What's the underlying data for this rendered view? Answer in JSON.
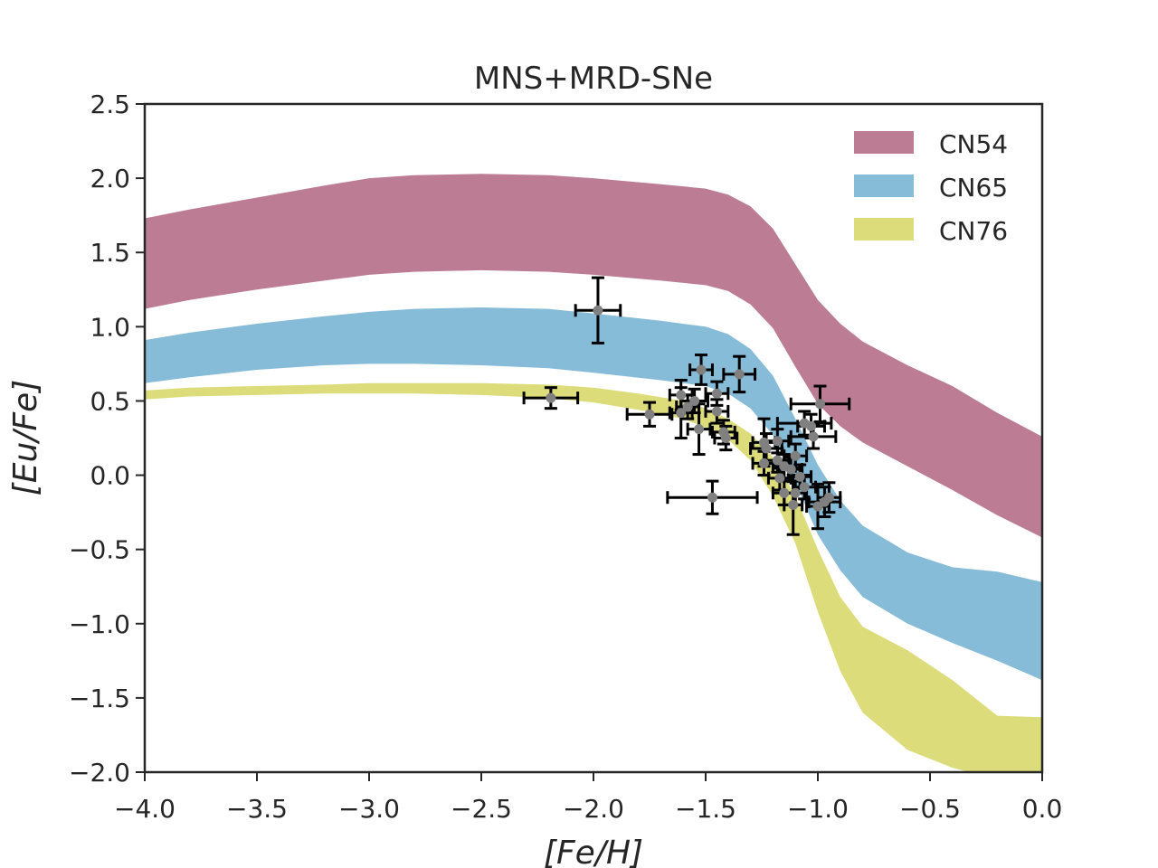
{
  "chart_data": {
    "type": "area",
    "title": "MNS+MRD-SNe",
    "xlabel": "[Fe/H]",
    "ylabel": "[Eu/Fe]",
    "xlim": [
      -4.0,
      0.0
    ],
    "ylim": [
      -2.0,
      2.5
    ],
    "xticks": [
      -4.0,
      -3.5,
      -3.0,
      -2.5,
      -2.0,
      -1.5,
      -1.0,
      -0.5,
      0.0
    ],
    "yticks": [
      -2.0,
      -1.5,
      -1.0,
      -0.5,
      0.0,
      0.5,
      1.0,
      1.5,
      2.0,
      2.5
    ],
    "xtick_labels": [
      "−4.0",
      "−3.5",
      "−3.0",
      "−2.5",
      "−2.0",
      "−1.5",
      "−1.0",
      "−0.5",
      "0.0"
    ],
    "ytick_labels": [
      "−2.0",
      "−1.5",
      "−1.0",
      "−0.5",
      "0.0",
      "0.5",
      "1.0",
      "1.5",
      "2.0",
      "2.5"
    ],
    "legend_position": "top-right",
    "series": [
      {
        "name": "CN54",
        "color": "#bc7d94",
        "upper": [
          [
            -4.0,
            1.73
          ],
          [
            -3.8,
            1.79
          ],
          [
            -3.5,
            1.87
          ],
          [
            -3.2,
            1.95
          ],
          [
            -3.0,
            2.0
          ],
          [
            -2.8,
            2.02
          ],
          [
            -2.5,
            2.03
          ],
          [
            -2.2,
            2.02
          ],
          [
            -2.0,
            2.0
          ],
          [
            -1.7,
            1.96
          ],
          [
            -1.5,
            1.93
          ],
          [
            -1.4,
            1.89
          ],
          [
            -1.3,
            1.81
          ],
          [
            -1.2,
            1.66
          ],
          [
            -1.1,
            1.42
          ],
          [
            -1.0,
            1.18
          ],
          [
            -0.9,
            1.02
          ],
          [
            -0.8,
            0.9
          ],
          [
            -0.6,
            0.74
          ],
          [
            -0.4,
            0.6
          ],
          [
            -0.2,
            0.42
          ],
          [
            0.0,
            0.26
          ]
        ],
        "lower": [
          [
            -4.0,
            1.12
          ],
          [
            -3.8,
            1.18
          ],
          [
            -3.5,
            1.25
          ],
          [
            -3.2,
            1.31
          ],
          [
            -3.0,
            1.35
          ],
          [
            -2.8,
            1.37
          ],
          [
            -2.5,
            1.38
          ],
          [
            -2.2,
            1.37
          ],
          [
            -2.0,
            1.35
          ],
          [
            -1.7,
            1.31
          ],
          [
            -1.5,
            1.28
          ],
          [
            -1.4,
            1.24
          ],
          [
            -1.3,
            1.15
          ],
          [
            -1.2,
            0.99
          ],
          [
            -1.1,
            0.73
          ],
          [
            -1.0,
            0.48
          ],
          [
            -0.9,
            0.33
          ],
          [
            -0.8,
            0.22
          ],
          [
            -0.6,
            0.06
          ],
          [
            -0.4,
            -0.1
          ],
          [
            -0.2,
            -0.27
          ],
          [
            0.0,
            -0.42
          ]
        ]
      },
      {
        "name": "CN65",
        "color": "#87bcd9",
        "upper": [
          [
            -4.0,
            0.91
          ],
          [
            -3.8,
            0.96
          ],
          [
            -3.5,
            1.02
          ],
          [
            -3.2,
            1.07
          ],
          [
            -3.0,
            1.1
          ],
          [
            -2.8,
            1.12
          ],
          [
            -2.5,
            1.13
          ],
          [
            -2.2,
            1.12
          ],
          [
            -2.0,
            1.09
          ],
          [
            -1.7,
            1.04
          ],
          [
            -1.5,
            1.0
          ],
          [
            -1.4,
            0.95
          ],
          [
            -1.3,
            0.85
          ],
          [
            -1.2,
            0.67
          ],
          [
            -1.1,
            0.38
          ],
          [
            -1.0,
            0.07
          ],
          [
            -0.9,
            -0.17
          ],
          [
            -0.8,
            -0.34
          ],
          [
            -0.6,
            -0.52
          ],
          [
            -0.4,
            -0.62
          ],
          [
            -0.2,
            -0.65
          ],
          [
            0.0,
            -0.72
          ]
        ],
        "lower": [
          [
            -4.0,
            0.62
          ],
          [
            -3.8,
            0.66
          ],
          [
            -3.5,
            0.71
          ],
          [
            -3.2,
            0.74
          ],
          [
            -3.0,
            0.75
          ],
          [
            -2.8,
            0.75
          ],
          [
            -2.5,
            0.74
          ],
          [
            -2.2,
            0.72
          ],
          [
            -2.0,
            0.69
          ],
          [
            -1.7,
            0.64
          ],
          [
            -1.5,
            0.6
          ],
          [
            -1.4,
            0.55
          ],
          [
            -1.3,
            0.45
          ],
          [
            -1.2,
            0.27
          ],
          [
            -1.1,
            -0.05
          ],
          [
            -1.0,
            -0.4
          ],
          [
            -0.9,
            -0.64
          ],
          [
            -0.8,
            -0.82
          ],
          [
            -0.6,
            -1.0
          ],
          [
            -0.4,
            -1.13
          ],
          [
            -0.2,
            -1.25
          ],
          [
            0.0,
            -1.38
          ]
        ]
      },
      {
        "name": "CN76",
        "color": "#dcdc7a",
        "upper": [
          [
            -4.0,
            0.57
          ],
          [
            -3.8,
            0.59
          ],
          [
            -3.5,
            0.6
          ],
          [
            -3.2,
            0.61
          ],
          [
            -3.0,
            0.62
          ],
          [
            -2.8,
            0.62
          ],
          [
            -2.5,
            0.62
          ],
          [
            -2.2,
            0.61
          ],
          [
            -2.0,
            0.59
          ],
          [
            -1.8,
            0.55
          ],
          [
            -1.6,
            0.5
          ],
          [
            -1.5,
            0.45
          ],
          [
            -1.4,
            0.38
          ],
          [
            -1.3,
            0.28
          ],
          [
            -1.2,
            0.12
          ],
          [
            -1.1,
            -0.14
          ],
          [
            -1.0,
            -0.5
          ],
          [
            -0.9,
            -0.82
          ],
          [
            -0.8,
            -1.02
          ],
          [
            -0.6,
            -1.18
          ],
          [
            -0.4,
            -1.38
          ],
          [
            -0.2,
            -1.62
          ],
          [
            0.0,
            -1.63
          ]
        ],
        "lower": [
          [
            -4.0,
            0.51
          ],
          [
            -3.8,
            0.53
          ],
          [
            -3.5,
            0.54
          ],
          [
            -3.2,
            0.55
          ],
          [
            -3.0,
            0.55
          ],
          [
            -2.8,
            0.55
          ],
          [
            -2.5,
            0.54
          ],
          [
            -2.2,
            0.52
          ],
          [
            -2.0,
            0.49
          ],
          [
            -1.8,
            0.44
          ],
          [
            -1.6,
            0.38
          ],
          [
            -1.5,
            0.32
          ],
          [
            -1.4,
            0.24
          ],
          [
            -1.3,
            0.1
          ],
          [
            -1.2,
            -0.14
          ],
          [
            -1.1,
            -0.46
          ],
          [
            -1.0,
            -0.92
          ],
          [
            -0.9,
            -1.32
          ],
          [
            -0.8,
            -1.6
          ],
          [
            -0.6,
            -1.85
          ],
          [
            -0.4,
            -1.97
          ],
          [
            -0.2,
            -2.05
          ],
          [
            0.0,
            -2.1
          ]
        ]
      }
    ],
    "observations": [
      {
        "x": -1.98,
        "y": 1.11,
        "xerr": 0.1,
        "yerr": 0.22
      },
      {
        "x": -2.19,
        "y": 0.52,
        "xerr": 0.12,
        "yerr": 0.07
      },
      {
        "x": -1.75,
        "y": 0.41,
        "xerr": 0.1,
        "yerr": 0.08
      },
      {
        "x": -1.52,
        "y": 0.71,
        "xerr": 0.05,
        "yerr": 0.1
      },
      {
        "x": -1.35,
        "y": 0.68,
        "xerr": 0.07,
        "yerr": 0.12
      },
      {
        "x": -1.61,
        "y": 0.54,
        "xerr": 0.05,
        "yerr": 0.1
      },
      {
        "x": -1.45,
        "y": 0.55,
        "xerr": 0.05,
        "yerr": 0.08
      },
      {
        "x": -1.55,
        "y": 0.5,
        "xerr": 0.06,
        "yerr": 0.08
      },
      {
        "x": -1.58,
        "y": 0.46,
        "xerr": 0.05,
        "yerr": 0.08
      },
      {
        "x": -1.61,
        "y": 0.42,
        "xerr": 0.05,
        "yerr": 0.17
      },
      {
        "x": -1.45,
        "y": 0.43,
        "xerr": 0.05,
        "yerr": 0.08
      },
      {
        "x": -1.53,
        "y": 0.31,
        "xerr": 0.05,
        "yerr": 0.17
      },
      {
        "x": -1.42,
        "y": 0.29,
        "xerr": 0.05,
        "yerr": 0.08
      },
      {
        "x": -1.41,
        "y": 0.25,
        "xerr": 0.05,
        "yerr": 0.08
      },
      {
        "x": -1.47,
        "y": -0.15,
        "xerr": 0.2,
        "yerr": 0.11
      },
      {
        "x": -1.24,
        "y": 0.22,
        "xerr": 0.05,
        "yerr": 0.16
      },
      {
        "x": -1.23,
        "y": 0.18,
        "xerr": 0.07,
        "yerr": 0.1
      },
      {
        "x": -1.18,
        "y": 0.23,
        "xerr": 0.05,
        "yerr": 0.08
      },
      {
        "x": -1.24,
        "y": 0.08,
        "xerr": 0.05,
        "yerr": 0.08
      },
      {
        "x": -1.18,
        "y": 0.1,
        "xerr": 0.05,
        "yerr": 0.08
      },
      {
        "x": -1.15,
        "y": 0.06,
        "xerr": 0.05,
        "yerr": 0.08
      },
      {
        "x": -1.17,
        "y": -0.02,
        "xerr": 0.05,
        "yerr": 0.08
      },
      {
        "x": -1.1,
        "y": 0.13,
        "xerr": 0.05,
        "yerr": 0.08
      },
      {
        "x": -1.12,
        "y": 0.04,
        "xerr": 0.05,
        "yerr": 0.08
      },
      {
        "x": -1.08,
        "y": -0.01,
        "xerr": 0.05,
        "yerr": 0.08
      },
      {
        "x": -1.06,
        "y": -0.08,
        "xerr": 0.05,
        "yerr": 0.08
      },
      {
        "x": -1.1,
        "y": -0.12,
        "xerr": 0.05,
        "yerr": 0.08
      },
      {
        "x": -1.15,
        "y": -0.12,
        "xerr": 0.05,
        "yerr": 0.08
      },
      {
        "x": -1.11,
        "y": -0.2,
        "xerr": 0.04,
        "yerr": 0.2
      },
      {
        "x": -1.06,
        "y": 0.35,
        "xerr": 0.12,
        "yerr": 0.08
      },
      {
        "x": -1.02,
        "y": 0.26,
        "xerr": 0.1,
        "yerr": 0.08
      },
      {
        "x": -0.99,
        "y": 0.48,
        "xerr": 0.13,
        "yerr": 0.12
      },
      {
        "x": -1.03,
        "y": 0.33,
        "xerr": 0.06,
        "yerr": 0.08
      },
      {
        "x": -0.97,
        "y": -0.18,
        "xerr": 0.07,
        "yerr": 0.1
      },
      {
        "x": -0.95,
        "y": -0.15,
        "xerr": 0.05,
        "yerr": 0.1
      },
      {
        "x": -1.0,
        "y": -0.21,
        "xerr": 0.05,
        "yerr": 0.15
      }
    ]
  }
}
